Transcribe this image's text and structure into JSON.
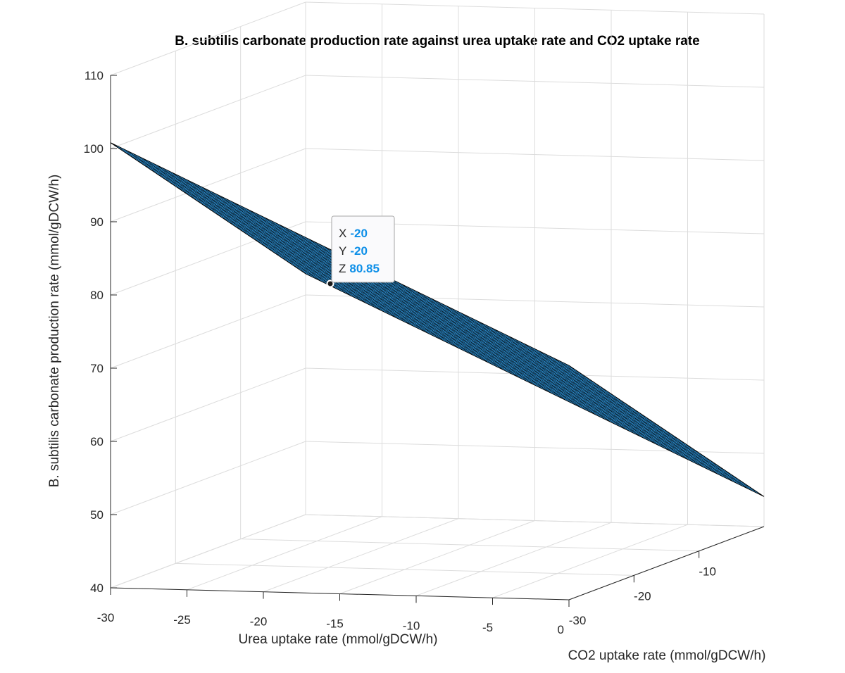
{
  "chart_data": {
    "type": "surface",
    "title": "B. subtilis carbonate production rate against urea uptake rate and CO2 uptake rate",
    "xlabel": "Urea uptake rate (mmol/gDCW/h)",
    "ylabel": "CO2 uptake rate (mmol/gDCW/h)",
    "zlabel": "B. subtilis carbonate production rate (mmol/gDCW/h)",
    "xlim": [
      -30,
      0
    ],
    "ylim": [
      -30,
      0
    ],
    "zlim": [
      40,
      110
    ],
    "x_ticks": [
      -30,
      -25,
      -20,
      -15,
      -10,
      -5,
      0
    ],
    "y_ticks": [
      -30,
      -20,
      -10
    ],
    "z_ticks": [
      40,
      50,
      60,
      70,
      80,
      90,
      100,
      110
    ],
    "x_tick_labels": [
      "-30",
      "-25",
      "-20",
      "-15",
      "-10",
      "-5",
      "0"
    ],
    "y_tick_labels": [
      "-30",
      "-20",
      "-10"
    ],
    "z_tick_labels": [
      "40",
      "50",
      "60",
      "70",
      "80",
      "90",
      "100",
      "110"
    ],
    "grid": true,
    "surface_color": "#2d8ed0",
    "edge_color": "#000000",
    "corners": [
      {
        "x": -30,
        "y": -30,
        "z": 100.8
      },
      {
        "x": 0,
        "y": -30,
        "z": 72.0
      },
      {
        "x": -30,
        "y": 0,
        "z": 72.9
      },
      {
        "x": 0,
        "y": 0,
        "z": 44.1
      }
    ],
    "datatip": {
      "x_label": "X",
      "x_value": "-20",
      "y_label": "Y",
      "y_value": "-20",
      "z_label": "Z",
      "z_value": "80.85"
    }
  }
}
